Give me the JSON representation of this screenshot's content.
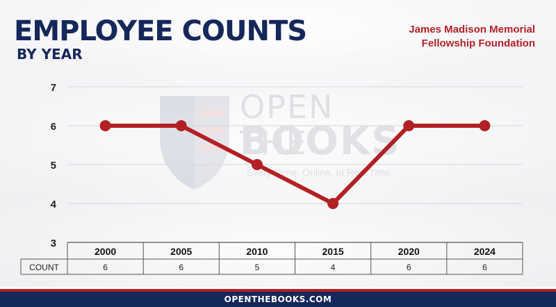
{
  "header": {
    "title": "EMPLOYEE COUNTS",
    "subtitle": "BY YEAR",
    "organization_line1": "James Madison Memorial",
    "organization_line2": "Fellowship Foundation"
  },
  "watermark": {
    "line1": "OPEN THE",
    "line2": "BOOKS",
    "tagline": "Every Dime. Online. In Real Time."
  },
  "footer": {
    "site": "OPENTHEBOOKS.COM"
  },
  "colors": {
    "navy": "#15285a",
    "red": "#b32024"
  },
  "chart_data": {
    "type": "line",
    "categories": [
      "2000",
      "2005",
      "2010",
      "2015",
      "2020",
      "2024"
    ],
    "series": [
      {
        "values": [
          6,
          6,
          5,
          4,
          6,
          6
        ]
      }
    ],
    "ylim": [
      3,
      7
    ],
    "yticks": [
      "3",
      "4",
      "5",
      "6",
      "7"
    ],
    "table_row_label": "COUNT",
    "table_values": [
      "6",
      "6",
      "5",
      "4",
      "6",
      "6"
    ],
    "grid": true,
    "line_color": "#b32024"
  }
}
